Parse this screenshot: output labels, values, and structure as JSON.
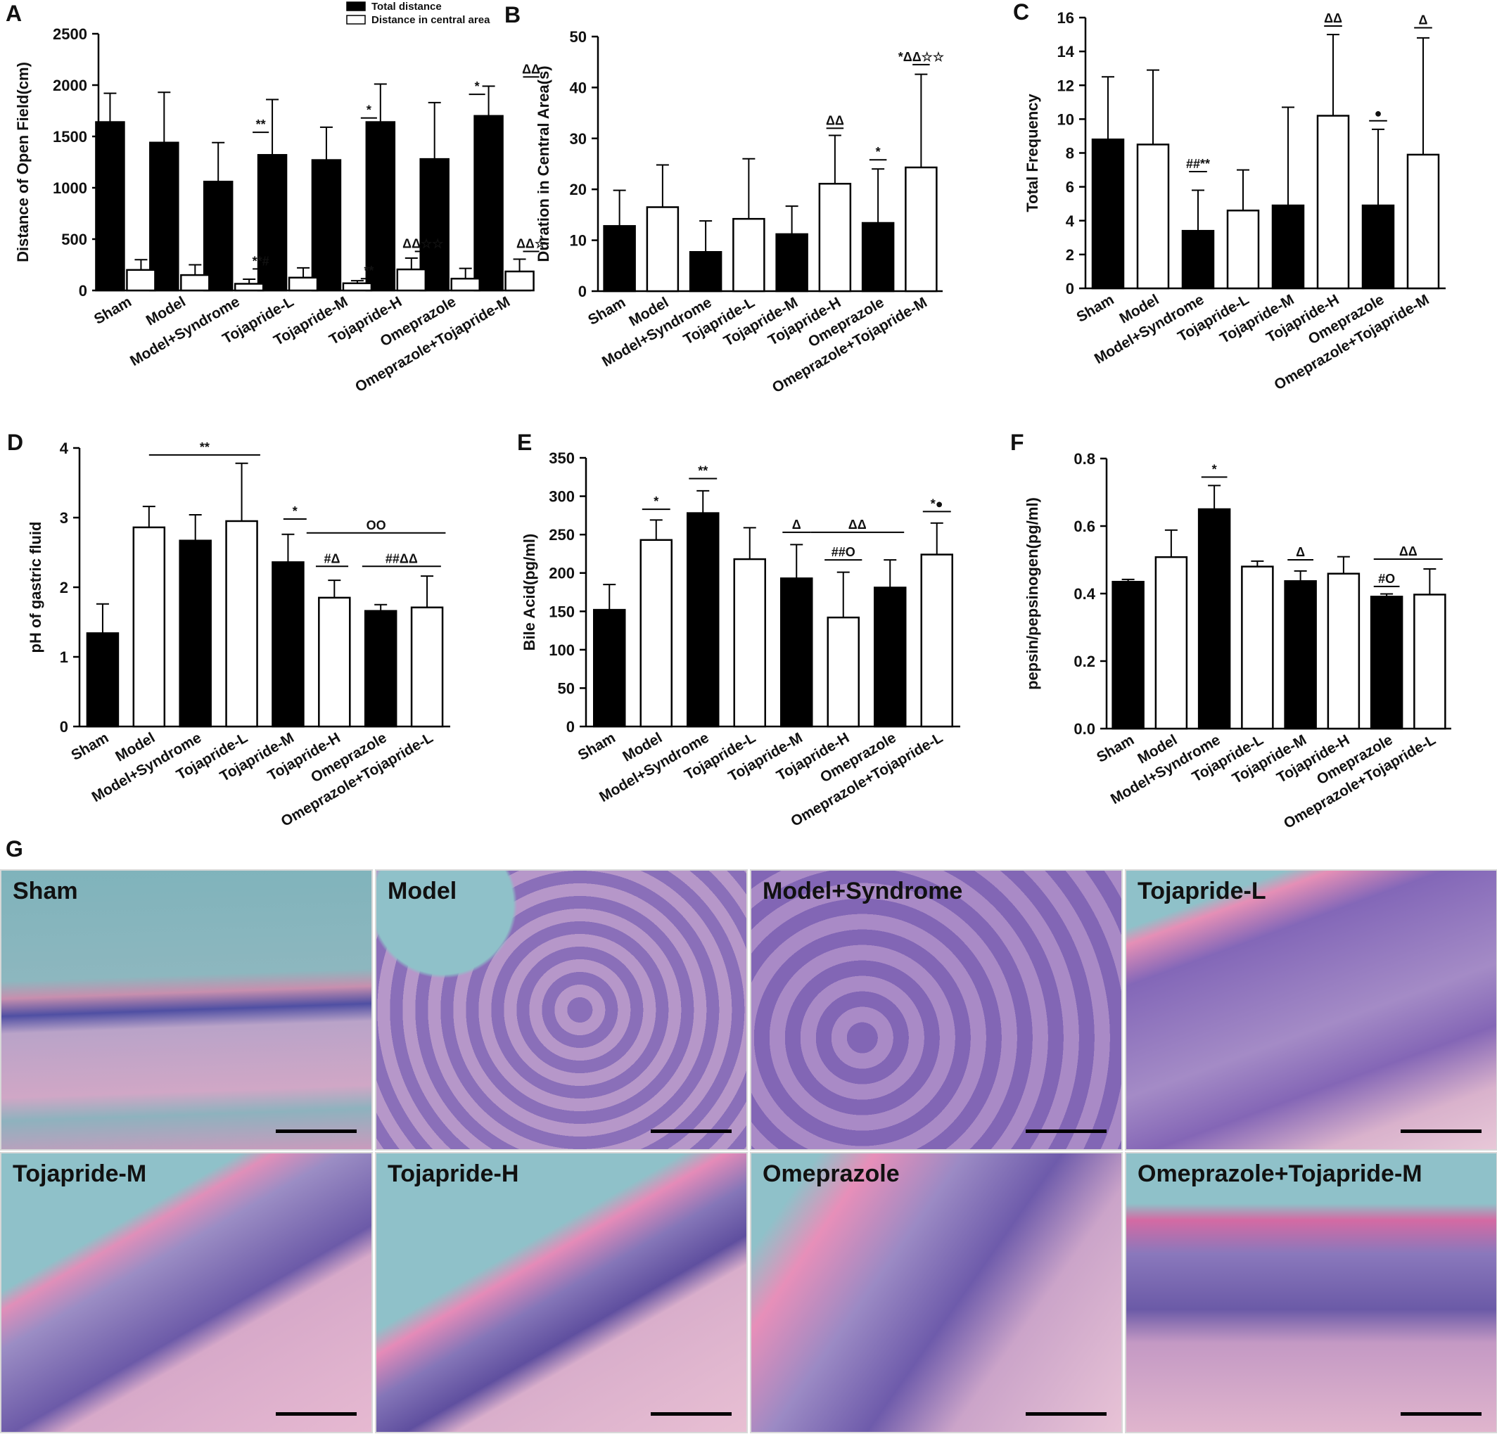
{
  "panels": [
    {
      "letter": "A",
      "chart_data": {
        "type": "bar",
        "ylabel": "Distance of Open Field(cm)",
        "ylim": [
          0,
          2500
        ],
        "yticks": [
          0,
          500,
          1000,
          1500,
          2000,
          2500
        ],
        "categories": [
          "Sham",
          "Model",
          "Model+Syndrome",
          "Tojapride-L",
          "Tojapride-M",
          "Tojapride-H",
          "Omeprazole",
          "Omeprazole+Tojapride-M"
        ],
        "legend": {
          "position": "top-right",
          "entries": [
            "Total distance",
            "Distance in central area"
          ]
        },
        "series": [
          {
            "name": "Total distance",
            "fill": "black",
            "values": [
              1640,
              1440,
              1060,
              1320,
              1270,
              1640,
              1280,
              1700
            ],
            "errors": [
              280,
              490,
              380,
              540,
              320,
              370,
              550,
              290
            ]
          },
          {
            "name": "Distance in central area",
            "fill": "white",
            "values": [
              200,
              150,
              65,
              125,
              70,
              205,
              115,
              185
            ],
            "errors": [
              100,
              100,
              45,
              95,
              25,
              110,
              100,
              120
            ]
          }
        ],
        "annotations": [
          {
            "text": "**",
            "from": 2.35,
            "to": 2.65,
            "y": 1540
          },
          {
            "text": "**#",
            "from": 2.35,
            "to": 2.65,
            "y": 210
          },
          {
            "text": "*",
            "from": 4.35,
            "to": 4.65,
            "y": 1680
          },
          {
            "text": "**",
            "from": 4.35,
            "to": 4.65,
            "y": 115
          },
          {
            "text": "ΔΔ☆☆",
            "from": 5.35,
            "to": 5.65,
            "y": 380
          },
          {
            "text": "*",
            "from": 6.35,
            "to": 6.65,
            "y": 1910
          },
          {
            "text": "ΔΔ",
            "from": 7.35,
            "to": 7.65,
            "y": 2080
          },
          {
            "text": "ΔΔ☆",
            "from": 7.35,
            "to": 7.65,
            "y": 380
          }
        ]
      }
    },
    {
      "letter": "B",
      "chart_data": {
        "type": "bar",
        "ylabel": "Duration in Central Area(s)",
        "ylim": [
          0,
          50
        ],
        "yticks": [
          0,
          10,
          20,
          30,
          40,
          50
        ],
        "categories": [
          "Sham",
          "Model",
          "Model+Syndrome",
          "Tojapride-L",
          "Tojapride-M",
          "Tojapride-H",
          "Omeprazole",
          "Omeprazole+Tojapride-M"
        ],
        "fills": [
          "black",
          "white",
          "black",
          "white",
          "black",
          "white",
          "black",
          "white"
        ],
        "values": [
          12.8,
          16.5,
          7.7,
          14.2,
          11.2,
          21.1,
          13.4,
          24.3
        ],
        "errors": [
          7,
          8.3,
          6.1,
          11.8,
          5.5,
          9.5,
          10.6,
          18.3
        ],
        "annotations": [
          {
            "text": "ΔΔ",
            "from": 4.8,
            "to": 5.2,
            "y": 32
          },
          {
            "text": "*",
            "from": 5.8,
            "to": 6.2,
            "y": 25.8
          },
          {
            "text": "*ΔΔ☆☆",
            "from": 6.8,
            "to": 7.2,
            "y": 44.5
          }
        ]
      }
    },
    {
      "letter": "C",
      "chart_data": {
        "type": "bar",
        "ylabel": "Total Frequency",
        "ylim": [
          0,
          16
        ],
        "yticks": [
          0,
          2,
          4,
          6,
          8,
          10,
          12,
          14,
          16
        ],
        "categories": [
          "Sham",
          "Model",
          "Model+Syndrome",
          "Tojapride-L",
          "Tojapride-M",
          "Tojapride-H",
          "Omeprazole",
          "Omeprazole+Tojapride-M"
        ],
        "fills": [
          "black",
          "white",
          "black",
          "white",
          "black",
          "white",
          "black",
          "white"
        ],
        "values": [
          8.8,
          8.5,
          3.4,
          4.6,
          4.9,
          10.2,
          4.9,
          7.9
        ],
        "errors": [
          3.7,
          4.4,
          2.4,
          2.4,
          5.8,
          4.8,
          4.5,
          6.9
        ],
        "annotations": [
          {
            "text": "##**",
            "from": 1.8,
            "to": 2.2,
            "y": 6.9
          },
          {
            "text": "ΔΔ",
            "from": 4.8,
            "to": 5.2,
            "y": 15.5
          },
          {
            "text": "●",
            "from": 5.8,
            "to": 6.2,
            "y": 9.9
          },
          {
            "text": "Δ",
            "from": 6.8,
            "to": 7.2,
            "y": 15.4
          }
        ]
      }
    },
    {
      "letter": "D",
      "chart_data": {
        "type": "bar",
        "ylabel": "pH of gastric fluid",
        "ylim": [
          0,
          4
        ],
        "yticks": [
          0,
          1,
          2,
          3,
          4
        ],
        "categories": [
          "Sham",
          "Model",
          "Model+Syndrome",
          "Tojapride-L",
          "Tojapride-M",
          "Tojapride-H",
          "Omeprazole",
          "Omeprazole+Tojapride-L"
        ],
        "fills": [
          "black",
          "white",
          "black",
          "white",
          "black",
          "white",
          "black",
          "white"
        ],
        "values": [
          1.34,
          2.86,
          2.67,
          2.95,
          2.36,
          1.85,
          1.66,
          1.71
        ],
        "errors": [
          0.42,
          0.3,
          0.37,
          0.83,
          0.4,
          0.25,
          0.09,
          0.45
        ],
        "annotations": [
          {
            "text": "**",
            "from": 1,
            "to": 3.4,
            "y": 3.9
          },
          {
            "text": "*",
            "from": 3.9,
            "to": 4.4,
            "y": 2.98
          },
          {
            "text": "OO",
            "from": 4.4,
            "to": 7.4,
            "y": 2.78
          },
          {
            "text": "#Δ",
            "from": 4.6,
            "to": 5.3,
            "y": 2.3
          },
          {
            "text": "##ΔΔ",
            "from": 5.6,
            "to": 7.3,
            "y": 2.3
          }
        ]
      }
    },
    {
      "letter": "E",
      "chart_data": {
        "type": "bar",
        "ylabel": "Bile Acid(pg/ml)",
        "ylim": [
          0,
          350
        ],
        "yticks": [
          0,
          50,
          100,
          150,
          200,
          250,
          300,
          350
        ],
        "categories": [
          "Sham",
          "Model",
          "Model+Syndrome",
          "Tojapride-L",
          "Tojapride-M",
          "Tojapride-H",
          "Omeprazole",
          "Omeprazole+Tojapride-L"
        ],
        "fills": [
          "black",
          "white",
          "black",
          "white",
          "black",
          "white",
          "black",
          "white"
        ],
        "values": [
          152,
          243,
          278,
          218,
          193,
          142,
          181,
          224
        ],
        "errors": [
          33,
          26,
          29,
          41,
          44,
          59,
          36,
          41
        ],
        "annotations": [
          {
            "text": "*",
            "from": 0.7,
            "to": 1.3,
            "y": 283
          },
          {
            "text": "**",
            "from": 1.7,
            "to": 2.3,
            "y": 323
          },
          {
            "text": "Δ",
            "from": 3.7,
            "to": 4.3,
            "y": 253
          },
          {
            "text": "ΔΔ",
            "from": 4.3,
            "to": 6.3,
            "y": 253
          },
          {
            "text": "##O",
            "from": 4.6,
            "to": 5.4,
            "y": 217
          },
          {
            "text": "*●",
            "from": 6.7,
            "to": 7.3,
            "y": 280
          }
        ]
      }
    },
    {
      "letter": "F",
      "chart_data": {
        "type": "bar",
        "ylabel": "pepsin/pepsinogen(pg/ml)",
        "ylim": [
          0,
          0.8
        ],
        "yticks": [
          "0.0",
          "0.2",
          "0.4",
          "0.6",
          "0.8"
        ],
        "categories": [
          "Sham",
          "Model",
          "Model+Syndrome",
          "Tojapride-L",
          "Tojapride-M",
          "Tojapride-H",
          "Omeprazole",
          "Omeprazole+Tojapride-L"
        ],
        "fills": [
          "black",
          "white",
          "black",
          "white",
          "black",
          "white",
          "black",
          "white"
        ],
        "values": [
          0.435,
          0.508,
          0.65,
          0.48,
          0.437,
          0.459,
          0.391,
          0.397
        ],
        "errors": [
          0.007,
          0.08,
          0.07,
          0.016,
          0.03,
          0.05,
          0.008,
          0.076
        ],
        "annotations": [
          {
            "text": "*",
            "from": 1.7,
            "to": 2.3,
            "y": 0.745
          },
          {
            "text": "Δ",
            "from": 3.7,
            "to": 4.3,
            "y": 0.5
          },
          {
            "text": "ΔΔ",
            "from": 5.7,
            "to": 7.3,
            "y": 0.502
          },
          {
            "text": "#O",
            "from": 5.7,
            "to": 6.3,
            "y": 0.421
          }
        ]
      }
    }
  ],
  "histology": {
    "letter": "G",
    "tiles": [
      {
        "label": "Sham",
        "style": "sham"
      },
      {
        "label": "Model",
        "style": "model"
      },
      {
        "label": "Model+Syndrome",
        "style": "syndrome"
      },
      {
        "label": "Tojapride-L",
        "style": "tojal"
      },
      {
        "label": "Tojapride-M",
        "style": "diag"
      },
      {
        "label": "Tojapride-H",
        "style": "diag2"
      },
      {
        "label": "Omeprazole",
        "style": "ome"
      },
      {
        "label": "Omeprazole+Tojapride-M",
        "style": "wave"
      }
    ]
  }
}
